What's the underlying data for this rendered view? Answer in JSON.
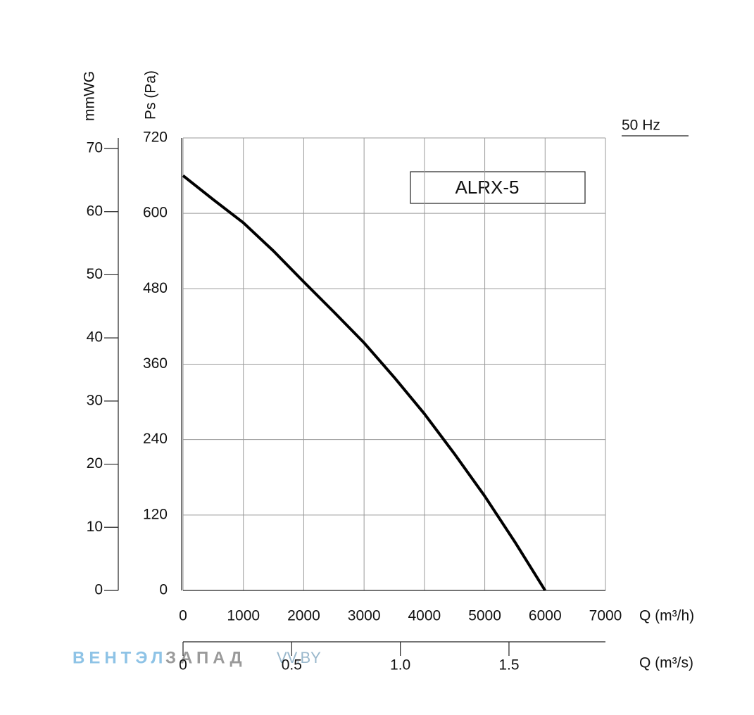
{
  "chart_data": {
    "type": "line",
    "annotation": "ALRX-5",
    "frequency_label": "50 Hz",
    "xlabel": "Q (m³/h)",
    "ylabel": "Ps (Pa)",
    "x2label": "Q (m³/s)",
    "y2label": "mmWG",
    "watermark": [
      "ВЕНТЭЛ",
      "ЗАПАД",
      "VV.BY"
    ],
    "x": [
      0,
      500,
      1000,
      1500,
      2000,
      2500,
      3000,
      3500,
      4000,
      4500,
      5000,
      5500,
      6000
    ],
    "series": [
      {
        "color": "#000000",
        "values": [
          660,
          622,
          585,
          540,
          491,
          443,
          394,
          339,
          281,
          217,
          150,
          77,
          0
        ]
      }
    ],
    "xlim": [
      0,
      7000
    ],
    "xticks": [
      0,
      1000,
      2000,
      3000,
      4000,
      5000,
      6000,
      7000
    ],
    "ylim": [
      0,
      720
    ],
    "yticks": [
      0,
      120,
      240,
      360,
      480,
      600,
      720
    ],
    "x2lim": [
      0,
      1.944
    ],
    "x2ticks": [
      0,
      0.5,
      {
        "value": 1,
        "label": "1.0"
      },
      1.5
    ],
    "y2lim": [
      0,
      70
    ],
    "y2ticks": [
      0,
      10,
      20,
      30,
      40,
      50,
      60,
      70
    ],
    "grid": true
  }
}
